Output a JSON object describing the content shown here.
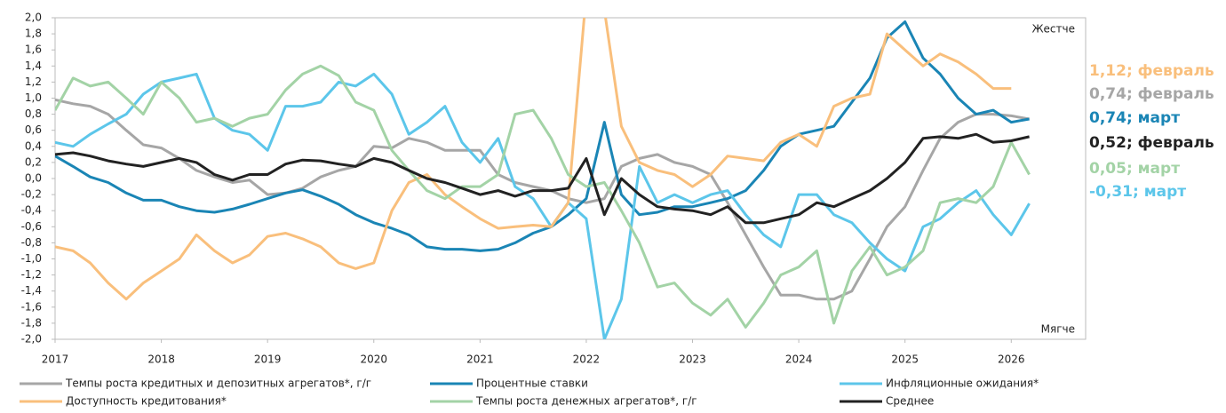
{
  "chart_data": {
    "type": "line",
    "x": [
      2017,
      2017.17,
      2017.33,
      2017.5,
      2017.67,
      2017.83,
      2018,
      2018.17,
      2018.33,
      2018.5,
      2018.67,
      2018.83,
      2019,
      2019.17,
      2019.33,
      2019.5,
      2019.67,
      2019.83,
      2020,
      2020.17,
      2020.33,
      2020.5,
      2020.67,
      2020.83,
      2021,
      2021.17,
      2021.33,
      2021.5,
      2021.67,
      2021.83,
      2022,
      2022.17,
      2022.33,
      2022.5,
      2022.67,
      2022.83,
      2023,
      2023.17,
      2023.33,
      2023.5,
      2023.67,
      2023.83,
      2024,
      2024.17,
      2024.33,
      2024.5,
      2024.67,
      2024.83,
      2025,
      2025.17,
      2025.33,
      2025.5,
      2025.67,
      2025.83,
      2026,
      2026.17
    ],
    "xlim": [
      2017,
      2026.7
    ],
    "xticks": [
      2017,
      2018,
      2019,
      2020,
      2021,
      2022,
      2023,
      2024,
      2025,
      2026
    ],
    "ylim": [
      -2,
      2
    ],
    "yticks": [
      {
        "value": -2,
        "label": "-2,0"
      },
      {
        "value": -1.8,
        "label": "-1,8"
      },
      {
        "value": -1.6,
        "label": "-1,6"
      },
      {
        "value": -1.4,
        "label": "-1,4"
      },
      {
        "value": -1.2,
        "label": "-1,2"
      },
      {
        "value": -1,
        "label": "-1,0"
      },
      {
        "value": -0.8,
        "label": "-0,8"
      },
      {
        "value": -0.6,
        "label": "-0,6"
      },
      {
        "value": -0.4,
        "label": "-0,4"
      },
      {
        "value": -0.2,
        "label": "-0,2"
      },
      {
        "value": 0,
        "label": "0,0"
      },
      {
        "value": 0.2,
        "label": "0,2"
      },
      {
        "value": 0.4,
        "label": "0,4"
      },
      {
        "value": 0.6,
        "label": "0,6"
      },
      {
        "value": 0.8,
        "label": "0,8"
      },
      {
        "value": 1,
        "label": "1,0"
      },
      {
        "value": 1.2,
        "label": "1,2"
      },
      {
        "value": 1.4,
        "label": "1,4"
      },
      {
        "value": 1.6,
        "label": "1,6"
      },
      {
        "value": 1.8,
        "label": "1,8"
      },
      {
        "value": 2,
        "label": "2,0"
      }
    ],
    "grid": false,
    "annotations": [
      {
        "text": "Жестче"
      },
      {
        "text": "Мягче"
      }
    ],
    "end_labels": [
      {
        "text": "1,12; февраль",
        "color": "#f9bf7c"
      },
      {
        "text": "0,74; февраль",
        "color": "#a6a6a6"
      },
      {
        "text": "0,74; март",
        "color": "#1a85b5"
      },
      {
        "text": "0,52; февраль",
        "color": "#222222"
      },
      {
        "text": "0,05; март",
        "color": "#a3d3a6"
      },
      {
        "text": "-0,31; март",
        "color": "#5cc6ea"
      }
    ],
    "series": [
      {
        "name": "Темпы роста кредитных и депозитных агрегатов*, г/г",
        "color": "#a6a6a6",
        "values": [
          0.98,
          0.93,
          0.9,
          0.8,
          0.6,
          0.42,
          0.38,
          0.25,
          0.1,
          0.02,
          -0.05,
          -0.02,
          -0.2,
          -0.18,
          -0.12,
          0.02,
          0.1,
          0.15,
          0.4,
          0.38,
          0.5,
          0.45,
          0.35,
          0.35,
          0.35,
          0.05,
          -0.05,
          -0.1,
          -0.15,
          -0.25,
          -0.3,
          -0.25,
          0.15,
          0.25,
          0.3,
          0.2,
          0.15,
          0.05,
          -0.3,
          -0.7,
          -1.1,
          -1.45,
          -1.45,
          -1.5,
          -1.5,
          -1.4,
          -1.0,
          -0.6,
          -0.35,
          0.1,
          0.5,
          0.7,
          0.8,
          0.8,
          0.78,
          0.74
        ]
      },
      {
        "name": "Процентные ставки",
        "color": "#1a85b5",
        "values": [
          0.28,
          0.15,
          0.02,
          -0.05,
          -0.18,
          -0.27,
          -0.27,
          -0.35,
          -0.4,
          -0.42,
          -0.38,
          -0.32,
          -0.25,
          -0.18,
          -0.14,
          -0.22,
          -0.32,
          -0.45,
          -0.55,
          -0.62,
          -0.7,
          -0.85,
          -0.88,
          -0.88,
          -0.9,
          -0.88,
          -0.8,
          -0.68,
          -0.6,
          -0.45,
          -0.25,
          0.7,
          -0.2,
          -0.45,
          -0.42,
          -0.35,
          -0.35,
          -0.3,
          -0.25,
          -0.15,
          0.1,
          0.4,
          0.55,
          0.6,
          0.65,
          0.95,
          1.25,
          1.75,
          1.95,
          1.5,
          1.3,
          1.0,
          0.8,
          0.85,
          0.7,
          0.74
        ]
      },
      {
        "name": "Инфляционные ожидания*",
        "color": "#5cc6ea",
        "values": [
          0.45,
          0.4,
          0.55,
          0.68,
          0.8,
          1.05,
          1.2,
          1.25,
          1.3,
          0.75,
          0.6,
          0.55,
          0.35,
          0.9,
          0.9,
          0.95,
          1.2,
          1.15,
          1.3,
          1.05,
          0.55,
          0.7,
          0.9,
          0.45,
          0.2,
          0.5,
          -0.1,
          -0.25,
          -0.6,
          -0.3,
          -0.5,
          -2.0,
          -1.5,
          0.15,
          -0.3,
          -0.2,
          -0.3,
          -0.2,
          -0.15,
          -0.45,
          -0.7,
          -0.85,
          -0.2,
          -0.2,
          -0.45,
          -0.55,
          -0.8,
          -1.0,
          -1.15,
          -0.6,
          -0.5,
          -0.3,
          -0.15,
          -0.45,
          -0.7,
          -0.31
        ]
      },
      {
        "name": "Доступность кредитования*",
        "color": "#f9bf7c",
        "values": [
          -0.85,
          -0.9,
          -1.05,
          -1.3,
          -1.5,
          -1.3,
          -1.15,
          -1.0,
          -0.7,
          -0.9,
          -1.05,
          -0.95,
          -0.72,
          -0.68,
          -0.75,
          -0.85,
          -1.05,
          -1.12,
          -1.05,
          -0.4,
          -0.05,
          0.05,
          -0.2,
          -0.35,
          -0.5,
          -0.62,
          -0.6,
          -0.58,
          -0.6,
          -0.3,
          2.3,
          2.1,
          0.65,
          0.2,
          0.1,
          0.05,
          -0.1,
          0.05,
          0.28,
          0.25,
          0.22,
          0.45,
          0.55,
          0.4,
          0.9,
          1.0,
          1.05,
          1.8,
          1.6,
          1.4,
          1.55,
          1.45,
          1.3,
          1.12,
          1.12,
          null
        ]
      },
      {
        "name": "Темпы роста денежных агрегатов*, г/г",
        "color": "#a3d3a6",
        "values": [
          0.85,
          1.25,
          1.15,
          1.2,
          1.0,
          0.8,
          1.2,
          1.0,
          0.7,
          0.75,
          0.65,
          0.75,
          0.8,
          1.1,
          1.3,
          1.4,
          1.28,
          0.95,
          0.85,
          0.35,
          0.1,
          -0.15,
          -0.25,
          -0.1,
          -0.1,
          0.05,
          0.8,
          0.85,
          0.5,
          0.05,
          -0.1,
          -0.05,
          -0.4,
          -0.8,
          -1.35,
          -1.3,
          -1.55,
          -1.7,
          -1.5,
          -1.85,
          -1.55,
          -1.2,
          -1.1,
          -0.9,
          -1.8,
          -1.15,
          -0.85,
          -1.2,
          -1.1,
          -0.9,
          -0.3,
          -0.25,
          -0.3,
          -0.1,
          0.45,
          0.05
        ]
      },
      {
        "name": "Среднее",
        "color": "#222222",
        "values": [
          0.3,
          0.32,
          0.28,
          0.22,
          0.18,
          0.15,
          0.2,
          0.25,
          0.2,
          0.05,
          -0.02,
          0.05,
          0.05,
          0.18,
          0.23,
          0.22,
          0.18,
          0.15,
          0.25,
          0.2,
          0.1,
          0.0,
          -0.05,
          -0.12,
          -0.2,
          -0.15,
          -0.22,
          -0.15,
          -0.15,
          -0.12,
          0.25,
          -0.45,
          0.0,
          -0.2,
          -0.35,
          -0.38,
          -0.4,
          -0.45,
          -0.35,
          -0.55,
          -0.55,
          -0.5,
          -0.45,
          -0.3,
          -0.35,
          -0.25,
          -0.15,
          0.0,
          0.2,
          0.5,
          0.52,
          0.5,
          0.55,
          0.45,
          0.47,
          0.52
        ]
      }
    ]
  }
}
